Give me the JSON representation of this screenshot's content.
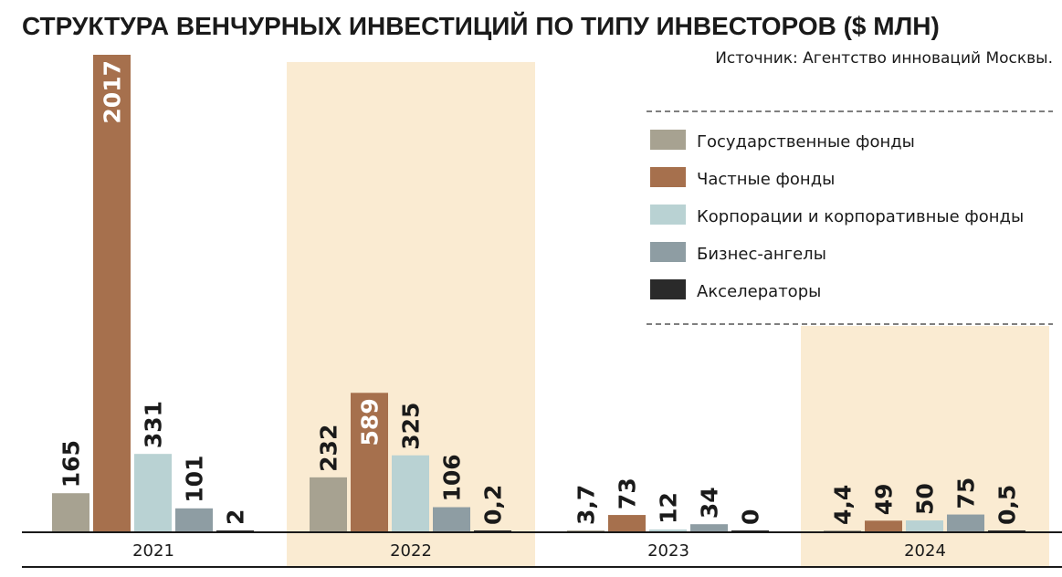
{
  "chart_data": {
    "type": "bar",
    "title": "СТРУКТУРА ВЕНЧУРНЫХ ИНВЕСТИЦИЙ ПО ТИПУ ИНВЕСТОРОВ ($ МЛН)",
    "source": "Источник: Агентство инноваций Москвы.",
    "categories": [
      "2021",
      "2022",
      "2023",
      "2024"
    ],
    "highlighted_categories": [
      "2022",
      "2024"
    ],
    "legend_position": "top-right",
    "ylim": [
      0,
      2017
    ],
    "grid": false,
    "series": [
      {
        "name": "Государственные фонды",
        "color": "#a7a291",
        "values": [
          165,
          232,
          3.7,
          4.4
        ],
        "labels": [
          "165",
          "232",
          "3,7",
          "4,4"
        ]
      },
      {
        "name": "Частные фонды",
        "color": "#a6704d",
        "values": [
          2017,
          589,
          73,
          49
        ],
        "labels": [
          "2017",
          "589",
          "73",
          "49"
        ]
      },
      {
        "name": "Корпорации и корпоративные фонды",
        "color": "#b9d2d3",
        "values": [
          331,
          325,
          12,
          50
        ],
        "labels": [
          "331",
          "325",
          "12",
          "50"
        ]
      },
      {
        "name": "Бизнес-ангелы",
        "color": "#8e9da3",
        "values": [
          101,
          106,
          34,
          75
        ],
        "labels": [
          "101",
          "106",
          "34",
          "75"
        ]
      },
      {
        "name": "Акселераторы",
        "color": "#2a2a2a",
        "values": [
          2,
          0.2,
          0,
          0.5
        ],
        "labels": [
          "2",
          "0,2",
          "0",
          "0,5"
        ]
      }
    ],
    "colors": {
      "highlight": "#faebd2",
      "axis": "#1a1a1a"
    }
  }
}
